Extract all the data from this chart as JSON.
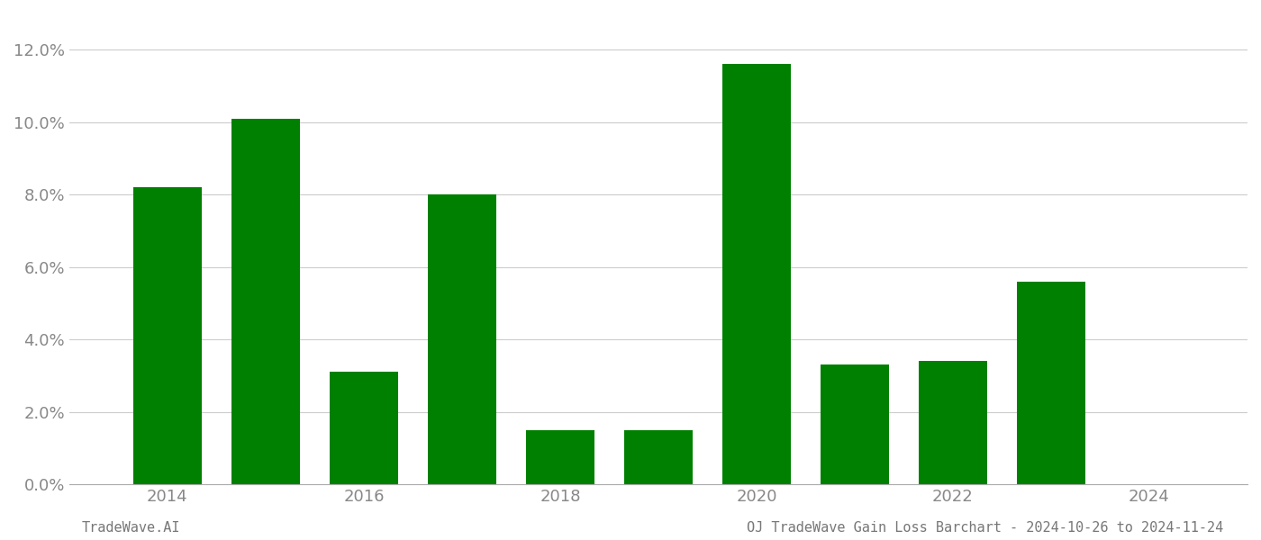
{
  "years": [
    2014,
    2015,
    2016,
    2017,
    2018,
    2019,
    2020,
    2021,
    2022,
    2023
  ],
  "values": [
    0.082,
    0.101,
    0.031,
    0.08,
    0.015,
    0.015,
    0.116,
    0.033,
    0.034,
    0.056
  ],
  "bar_color": "#008000",
  "background_color": "#ffffff",
  "grid_color": "#cccccc",
  "ylim": [
    0,
    0.13
  ],
  "yticks": [
    0.0,
    0.02,
    0.04,
    0.06,
    0.08,
    0.1,
    0.12
  ],
  "xticks": [
    2014,
    2016,
    2018,
    2020,
    2022,
    2024
  ],
  "xlim": [
    2013.0,
    2025.0
  ],
  "footer_left": "TradeWave.AI",
  "footer_right": "OJ TradeWave Gain Loss Barchart - 2024-10-26 to 2024-11-24",
  "bar_width": 0.7,
  "tick_fontsize": 13,
  "footer_fontsize": 11
}
